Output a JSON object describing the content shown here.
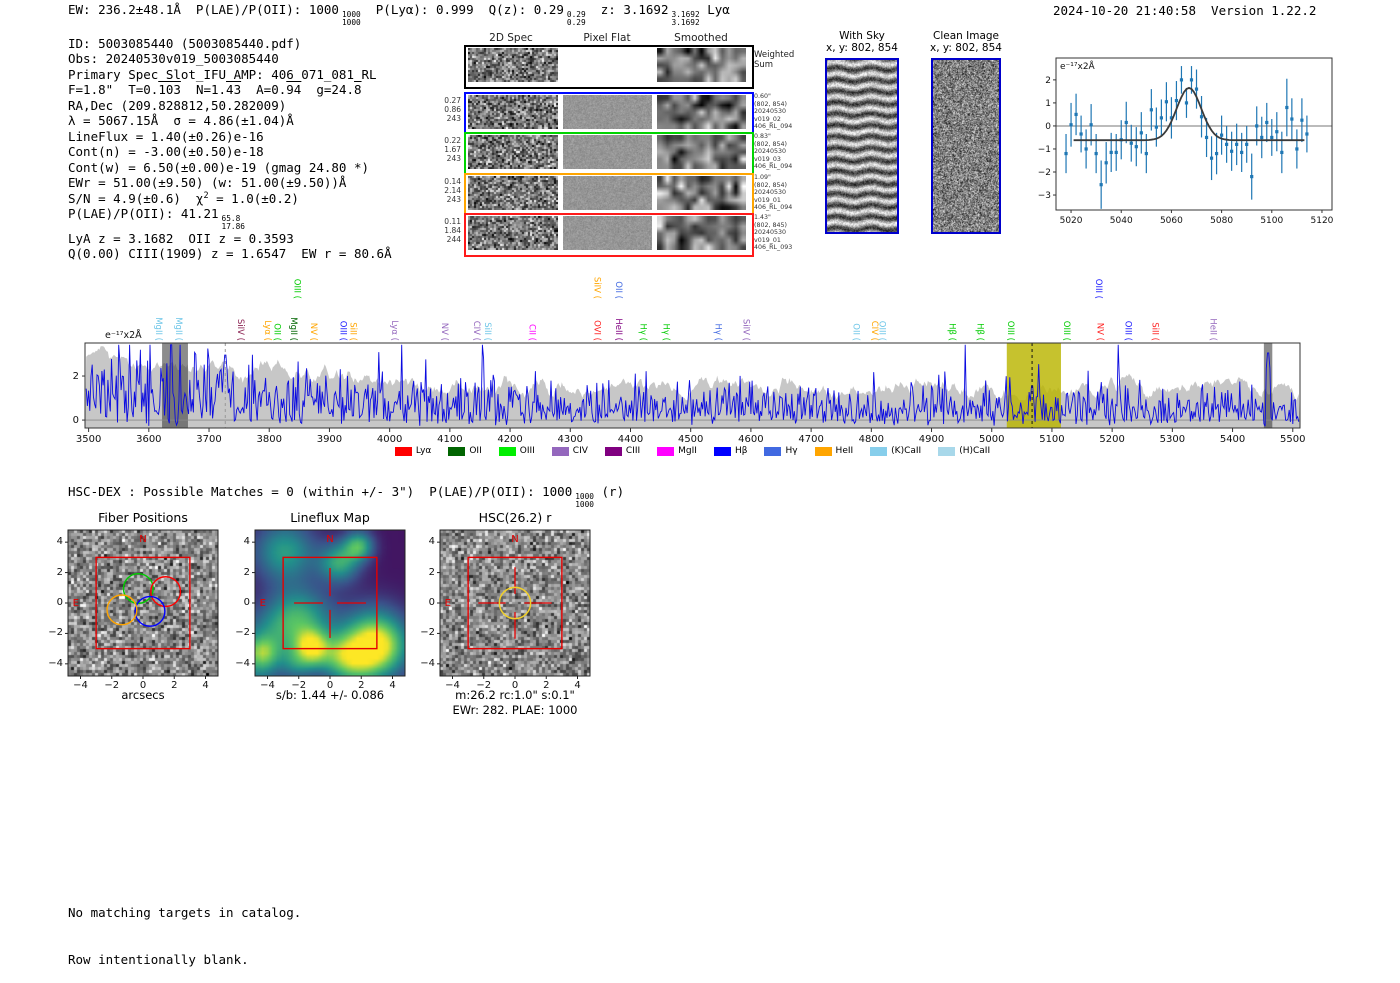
{
  "header": {
    "summary_segments": [
      {
        "t": "EW: 236.2±48.1Å  P(LAE)/P(OII): 1000"
      },
      {
        "frac": [
          "1000",
          "1000"
        ]
      },
      {
        "t": "  P(Lyα): 0.999  Q(z): 0.29"
      },
      {
        "frac": [
          "0.29",
          "0.29"
        ]
      },
      {
        "t": "  z: 3.1692"
      },
      {
        "frac": [
          "3.1692",
          "3.1692"
        ]
      },
      {
        "t": " Lyα"
      }
    ],
    "timestamp": "2024-10-20 21:40:58  Version 1.22.2"
  },
  "info_panel": {
    "lines": [
      [
        {
          "t": "ID: 5003085440 (5003085440.pdf)"
        }
      ],
      [
        {
          "t": "Obs: 20240530v019_5003085440"
        }
      ],
      [
        {
          "t": "Primary Spec_Slot_IFU_AMP: 406_071_081_RL"
        }
      ],
      [
        {
          "t": "F=1.8\"  T=0."
        },
        {
          "bar": "103"
        },
        {
          "t": "  N=1."
        },
        {
          "bar": "43"
        },
        {
          "t": "  A=0."
        },
        {
          "bar": "94"
        },
        {
          "t": "  g=24."
        },
        {
          "bar": "8"
        }
      ],
      [
        {
          "t": "RA,Dec (209.828812,50.282009)"
        }
      ],
      [
        {
          "t": "λ = 5067.15Å  σ = 4.86(±1.04)Å"
        }
      ],
      [
        {
          "t": "LineFlux = 1.40(±0.26)e-16"
        }
      ],
      [
        {
          "t": "Cont(n) = -3.00(±0.50)e-18"
        }
      ],
      [
        {
          "t": "Cont(w) = 6.50(±0.00)e-19 (gmag 24.80 *)"
        }
      ],
      [
        {
          "t": "EWr = 51.00(±9.50) (w: 51.00(±9.50))Å"
        }
      ],
      [
        {
          "t": "S/N = 4.9(±0.6)  χ"
        },
        {
          "sup": "2"
        },
        {
          "t": " = 1.0(±0.2)"
        }
      ],
      [
        {
          "t": "P(LAE)/P(OII): 41.21"
        },
        {
          "frac": [
            "65.8",
            "17.86"
          ]
        }
      ],
      [
        {
          "t": "LyA z = 3.1682  OII z = 0.3593"
        }
      ],
      [
        {
          "t": "Q(0.00) CIII(1909) z = 1.6547  EW r = 80.6Å"
        }
      ]
    ]
  },
  "spec2d": {
    "col_headers": [
      "2D Spec",
      "Pixel Flat",
      "Smoothed"
    ],
    "weighted_label_lines": [
      "Weighted",
      "Sum"
    ],
    "rows": [
      {
        "color": "#0008ff",
        "left": [
          "0.27",
          "0.86",
          "243"
        ],
        "right": [
          "0.60\"",
          "(802, 854)",
          "20240530",
          "v019_02",
          "406_RL_094"
        ]
      },
      {
        "color": "#00d400",
        "left": [
          "0.22",
          "1.67",
          "243"
        ],
        "right": [
          "0.83\"",
          "(802, 854)",
          "20240530",
          "v019_03",
          "406_RL_094"
        ]
      },
      {
        "color": "#ffa500",
        "left": [
          "0.14",
          "2.14",
          "243"
        ],
        "right": [
          "1.09\"",
          "(802, 854)",
          "20240530",
          "v019_01",
          "406_RL_094"
        ]
      },
      {
        "color": "#ff1a1a",
        "left": [
          "0.11",
          "1.84",
          "244"
        ],
        "right": [
          "1.43\"",
          "(802, 845)",
          "20240530",
          "v019_01",
          "406_RL_093"
        ]
      }
    ]
  },
  "cutouts": {
    "with_sky": {
      "title": "With Sky",
      "subtitle": "x, y: 802, 854"
    },
    "clean": {
      "title": "Clean Image",
      "subtitle": "x, y: 802, 854"
    }
  },
  "hsc_dex_segments": [
    {
      "t": "HSC-DEX : Possible Matches = 0 (within +/- 3\")  P(LAE)/P(OII): 1000"
    },
    {
      "frac": [
        "1000",
        "1000"
      ]
    },
    {
      "t": " (r)"
    }
  ],
  "footer_lines": [
    "No matching targets in catalog.",
    "Row intentionally blank."
  ],
  "chart_data": [
    {
      "id": "line_fit",
      "type": "scatter",
      "ylabel": "e⁻¹⁷x2Å",
      "x_ticks": [
        5020,
        5040,
        5060,
        5080,
        5100,
        5120
      ],
      "y_ticks": [
        2,
        1,
        0,
        -1,
        -2,
        -3
      ],
      "x_range": [
        5014,
        5124
      ],
      "y_range": [
        -3.65,
        2.95
      ],
      "marker_color": "#1f77b4",
      "fit_color": "#3a3a3a",
      "x_start": 5018,
      "x_step": 2,
      "y": [
        -1.2,
        0.05,
        0.5,
        -0.35,
        -1.0,
        0.05,
        -1.2,
        -2.55,
        -1.6,
        -1.15,
        -1.15,
        -0.6,
        0.15,
        -0.75,
        -0.9,
        -0.3,
        -1.2,
        0.7,
        -0.05,
        0.35,
        1.05,
        0.35,
        1.1,
        2.0,
        1.0,
        2.0,
        1.6,
        0.4,
        -0.5,
        -1.4,
        -1.2,
        -0.4,
        -0.8,
        -1.1,
        -0.8,
        -1.15,
        -0.8,
        -2.2,
        0.0,
        -0.5,
        0.15,
        -0.5,
        -0.25,
        -1.15,
        0.8,
        0.3,
        -1.0,
        0.25,
        -0.35
      ],
      "err": [
        0.85,
        0.95,
        0.9,
        0.8,
        0.85,
        0.9,
        0.85,
        1.05,
        0.9,
        0.85,
        0.8,
        0.85,
        0.9,
        0.8,
        0.85,
        0.9,
        0.85,
        0.9,
        0.85,
        0.8,
        0.85,
        0.9,
        0.85,
        0.6,
        0.65,
        0.6,
        0.85,
        0.9,
        0.85,
        0.95,
        0.9,
        0.85,
        0.8,
        0.85,
        0.9,
        0.85,
        0.8,
        1.0,
        0.85,
        0.9,
        0.85,
        0.8,
        0.85,
        0.9,
        1.25,
        0.9,
        0.85,
        0.95,
        0.8
      ],
      "fit": {
        "center": 5067,
        "sigma": 4.9,
        "baseline": -0.62,
        "peak_y": 1.65,
        "span": [
          5021,
          5113
        ]
      }
    },
    {
      "id": "full_spectrum",
      "type": "line",
      "ylabel": "e⁻¹⁷x2Å",
      "x_ticks": [
        3500,
        3600,
        3700,
        3800,
        3900,
        4000,
        4100,
        4200,
        4300,
        4400,
        4500,
        4600,
        4700,
        4800,
        4900,
        5000,
        5100,
        5200,
        5300,
        5400,
        5500
      ],
      "y_ticks": [
        0,
        2
      ],
      "x_range": [
        3494,
        5512
      ],
      "y_range": [
        -0.36,
        3.5
      ],
      "spectrum_color": "#0a0ae0",
      "envelope_color": "#c7c7c7",
      "highlight_band": {
        "x0": 5025,
        "x1": 5115,
        "color": "#b9b400"
      },
      "dashed_line_x": 5067,
      "dashed_gray_x": 3727,
      "shaded_bands": [
        {
          "x0": 3622,
          "x1": 3665
        },
        {
          "x0": 5452,
          "x1": 5466
        }
      ],
      "forced_peaks": [
        {
          "x": 3727,
          "y": 3.3
        },
        {
          "x": 5067,
          "y": 1.9
        },
        {
          "x": 5459,
          "y": 3.4
        }
      ],
      "noise_seed": 77,
      "line_labels": [
        {
          "t": "MgII",
          "x": 3612,
          "c": "#6ec6e8",
          "tier": 1
        },
        {
          "t": "MgII",
          "x": 3645,
          "c": "#6ec6e8",
          "tier": 1
        },
        {
          "t": "SiIV",
          "x": 3748,
          "c": "#8b2252",
          "tier": 1
        },
        {
          "t": "Lyα",
          "x": 3793,
          "c": "#ffa500",
          "tier": 1
        },
        {
          "t": "OII",
          "x": 3809,
          "c": "#00cc00",
          "tier": 1
        },
        {
          "t": "MgII",
          "x": 3836,
          "c": "#006400",
          "tier": 1
        },
        {
          "t": "OIII",
          "x": 3842,
          "c": "#00cc00",
          "tier": 2
        },
        {
          "t": "NV",
          "x": 3869,
          "c": "#ffa500",
          "tier": 1
        },
        {
          "t": "OIII",
          "x": 3918,
          "c": "#1a1aff",
          "tier": 1
        },
        {
          "t": "SiII",
          "x": 3935,
          "c": "#ffa500",
          "tier": 1
        },
        {
          "t": "Lyα",
          "x": 4004,
          "c": "#9467bd",
          "tier": 1
        },
        {
          "t": "NV",
          "x": 4087,
          "c": "#9467bd",
          "tier": 1
        },
        {
          "t": "CIV",
          "x": 4140,
          "c": "#9467bd",
          "tier": 1
        },
        {
          "t": "SiII",
          "x": 4158,
          "c": "#6ec6e8",
          "tier": 1
        },
        {
          "t": "CII",
          "x": 4232,
          "c": "#ff00ff",
          "tier": 1
        },
        {
          "t": "OVI",
          "x": 4340,
          "c": "#ff2222",
          "tier": 1
        },
        {
          "t": "SiIV",
          "x": 4340,
          "c": "#ffa500",
          "tier": 2
        },
        {
          "t": "OII",
          "x": 4376,
          "c": "#4169e1",
          "tier": 2
        },
        {
          "t": "HeII",
          "x": 4376,
          "c": "#800080",
          "tier": 1
        },
        {
          "t": "Hγ",
          "x": 4417,
          "c": "#00cc00",
          "tier": 1
        },
        {
          "t": "Hγ",
          "x": 4455,
          "c": "#00cc00",
          "tier": 1
        },
        {
          "t": "Hγ",
          "x": 4541,
          "c": "#4169e1",
          "tier": 1
        },
        {
          "t": "SiIV",
          "x": 4588,
          "c": "#9467bd",
          "tier": 1
        },
        {
          "t": "OII",
          "x": 4770,
          "c": "#6ec6e8",
          "tier": 1
        },
        {
          "t": "CIV",
          "x": 4801,
          "c": "#ffa500",
          "tier": 1
        },
        {
          "t": "OIII",
          "x": 4814,
          "c": "#6ec6e8",
          "tier": 1
        },
        {
          "t": "Hβ",
          "x": 4930,
          "c": "#00cc00",
          "tier": 1
        },
        {
          "t": "Hβ",
          "x": 4976,
          "c": "#00cc00",
          "tier": 1
        },
        {
          "t": "OIII",
          "x": 5027,
          "c": "#00cc00",
          "tier": 1
        },
        {
          "t": "OIII",
          "x": 5120,
          "c": "#00cc00",
          "tier": 1
        },
        {
          "t": "OIII",
          "x": 5173,
          "c": "#1a1aff",
          "tier": 2
        },
        {
          "t": "NV",
          "x": 5176,
          "c": "#ff2222",
          "tier": 1
        },
        {
          "t": "OIII",
          "x": 5222,
          "c": "#1a1aff",
          "tier": 1
        },
        {
          "t": "SiII",
          "x": 5267,
          "c": "#ff2222",
          "tier": 1
        },
        {
          "t": "HeII",
          "x": 5363,
          "c": "#9467bd",
          "tier": 1
        }
      ],
      "legend": [
        {
          "label": "Lyα",
          "color": "#ff0000"
        },
        {
          "label": "OII",
          "color": "#006400"
        },
        {
          "label": "OIII",
          "color": "#00ee00"
        },
        {
          "label": "CIV",
          "color": "#9467bd"
        },
        {
          "label": "CIII",
          "color": "#800080"
        },
        {
          "label": "MgII",
          "color": "#ff00ff"
        },
        {
          "label": "Hβ",
          "color": "#0000ff"
        },
        {
          "label": "Hγ",
          "color": "#4169e1"
        },
        {
          "label": "HeII",
          "color": "#ffa500"
        },
        {
          "label": "(K)CaII",
          "color": "#87ceeb"
        },
        {
          "label": "(H)CaII",
          "color": "#a8d8ea"
        }
      ]
    },
    {
      "id": "fiber_positions",
      "type": "image-map",
      "title": "Fiber Positions",
      "xlabel": "arcsecs",
      "ticks": [
        "−4",
        "−2",
        "0",
        "2",
        "4"
      ],
      "tick_values": [
        -4,
        -2,
        0,
        2,
        4
      ],
      "range": [
        -4.8,
        4.8
      ],
      "square": {
        "x0": -3,
        "x1": 3,
        "color": "#e60000"
      },
      "compass": {
        "n": "N",
        "e": "E",
        "color": "#e60000"
      },
      "image": "gray_noise",
      "seed": 311,
      "fibers": [
        {
          "x": -0.3,
          "y": 0.95,
          "r": 0.95,
          "color": "#00cc00"
        },
        {
          "x": 1.45,
          "y": 0.75,
          "r": 0.95,
          "color": "#ff0000"
        },
        {
          "x": 0.45,
          "y": -0.55,
          "r": 0.95,
          "color": "#0000ff"
        },
        {
          "x": -1.35,
          "y": -0.45,
          "r": 0.95,
          "color": "#ffa500"
        }
      ]
    },
    {
      "id": "lineflux_map",
      "type": "image-map",
      "title": "Lineflux Map",
      "xlabel": "s/b: 1.44 +/- 0.086",
      "ticks": [
        "−4",
        "−2",
        "0",
        "2",
        "4"
      ],
      "tick_values": [
        -4,
        -2,
        0,
        2,
        4
      ],
      "range": [
        -4.8,
        4.8
      ],
      "square": {
        "x0": -3,
        "x1": 3,
        "color": "#e60000"
      },
      "compass": {
        "n": "N",
        "e": "E",
        "color": "#e60000"
      },
      "image": "viridis_blobs",
      "seed": 97,
      "crosshair": {
        "inner": 0.45,
        "outer": 2.3,
        "color": "#e60000"
      }
    },
    {
      "id": "hsc_r",
      "type": "image-map",
      "title": "HSC(26.2) r",
      "xlabel": "m:26.2 rc:1.0\"  s:0.1\"",
      "xlabel2": "EWr: 282. PLAE: 1000",
      "ticks": [
        "−4",
        "−2",
        "0",
        "2",
        "4"
      ],
      "tick_values": [
        -4,
        -2,
        0,
        2,
        4
      ],
      "range": [
        -4.8,
        4.8
      ],
      "square": {
        "x0": -3,
        "x1": 3,
        "color": "#e60000"
      },
      "compass": {
        "n": "N",
        "e": "E",
        "color": "#e60000"
      },
      "image": "gray_noise",
      "seed": 512,
      "crosshair": {
        "inner": 0.6,
        "outer": 2.35,
        "color": "#e60000"
      },
      "aperture": {
        "r": 1.0,
        "color": "#f0cf2a"
      }
    }
  ]
}
